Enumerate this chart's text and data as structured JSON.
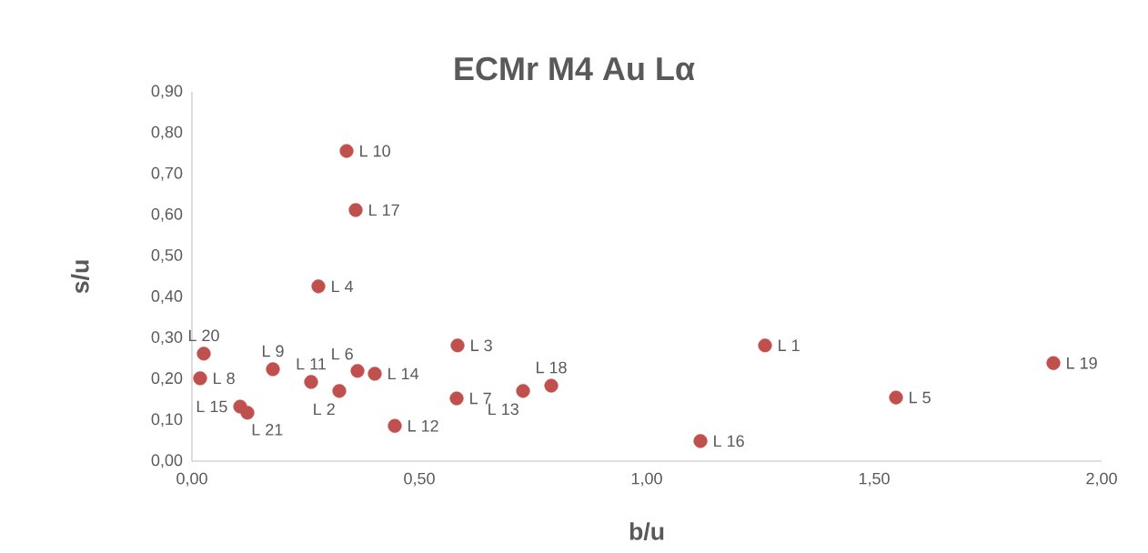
{
  "chart_data": {
    "type": "scatter",
    "title": "ECMr  M4 Au Lα",
    "xlabel": "b/u",
    "ylabel": "s/u",
    "color": "#c0504d",
    "x": [
      1.26,
      0.324,
      0.584,
      0.278,
      1.548,
      0.364,
      0.582,
      0.018,
      0.178,
      0.34,
      0.262,
      0.446,
      0.728,
      0.402,
      0.106,
      1.118,
      0.36,
      0.79,
      1.894,
      0.026,
      0.122
    ],
    "values": [
      0.282,
      0.171,
      0.282,
      0.426,
      0.155,
      0.22,
      0.153,
      0.202,
      0.224,
      0.756,
      0.193,
      0.086,
      0.171,
      0.213,
      0.133,
      0.049,
      0.612,
      0.184,
      0.239,
      0.262,
      0.118
    ],
    "xlim": [
      0,
      2
    ],
    "ylim": [
      0,
      0.9
    ],
    "xticks": [
      {
        "value": 0,
        "label": "0,00"
      },
      {
        "value": 0.5,
        "label": "0,50"
      },
      {
        "value": 1,
        "label": "1,00"
      },
      {
        "value": 1.5,
        "label": "1,50"
      },
      {
        "value": 2,
        "label": "2,00"
      }
    ],
    "yticks": [
      {
        "value": 0,
        "label": "0,00"
      },
      {
        "value": 0.1,
        "label": "0,10"
      },
      {
        "value": 0.2,
        "label": "0,20"
      },
      {
        "value": 0.3,
        "label": "0,30"
      },
      {
        "value": 0.4,
        "label": "0,40"
      },
      {
        "value": 0.5,
        "label": "0,50"
      },
      {
        "value": 0.6,
        "label": "0,60"
      },
      {
        "value": 0.7,
        "label": "0,70"
      },
      {
        "value": 0.8,
        "label": "0,80"
      },
      {
        "value": 0.9,
        "label": "0,90"
      }
    ],
    "annotations": [
      {
        "text": "L 1",
        "x": 1.26,
        "y": 0.282
      },
      {
        "text": "L 2",
        "x": 0.324,
        "y": 0.171
      },
      {
        "text": "L 3",
        "x": 0.584,
        "y": 0.282
      },
      {
        "text": "L 4",
        "x": 0.278,
        "y": 0.426
      },
      {
        "text": "L 5",
        "x": 1.548,
        "y": 0.155
      },
      {
        "text": "L 6",
        "x": 0.364,
        "y": 0.22
      },
      {
        "text": "L 7",
        "x": 0.582,
        "y": 0.153
      },
      {
        "text": "L 8",
        "x": 0.018,
        "y": 0.202
      },
      {
        "text": "L 9",
        "x": 0.178,
        "y": 0.224
      },
      {
        "text": "L 10",
        "x": 0.34,
        "y": 0.756
      },
      {
        "text": "L 11",
        "x": 0.262,
        "y": 0.193
      },
      {
        "text": "L 12",
        "x": 0.446,
        "y": 0.086
      },
      {
        "text": "L 13",
        "x": 0.728,
        "y": 0.171
      },
      {
        "text": "L 14",
        "x": 0.402,
        "y": 0.213
      },
      {
        "text": "L 15",
        "x": 0.106,
        "y": 0.133
      },
      {
        "text": "L 16",
        "x": 1.118,
        "y": 0.049
      },
      {
        "text": "L 17",
        "x": 0.36,
        "y": 0.612
      },
      {
        "text": "L 18",
        "x": 0.79,
        "y": 0.184
      },
      {
        "text": "L 19",
        "x": 1.894,
        "y": 0.239
      },
      {
        "text": "L 20",
        "x": 0.026,
        "y": 0.262
      },
      {
        "text": "L 21",
        "x": 0.122,
        "y": 0.118
      }
    ]
  }
}
